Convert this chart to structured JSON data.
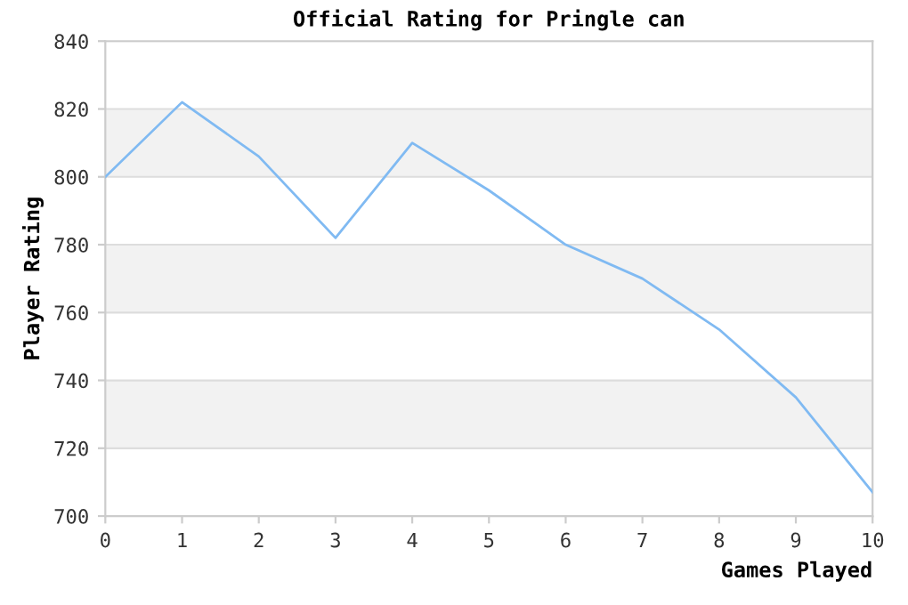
{
  "chart_data": {
    "type": "line",
    "title": "Official Rating for Pringle can",
    "xlabel": "Games Played",
    "ylabel": "Player Rating",
    "x": [
      0,
      1,
      2,
      3,
      4,
      5,
      6,
      7,
      8,
      9,
      10
    ],
    "series": [
      {
        "color": "#80baf2",
        "values": [
          800,
          822,
          806,
          782,
          810,
          796,
          780,
          770,
          755,
          735,
          707
        ]
      }
    ],
    "xlim": [
      0,
      10
    ],
    "xticks": [
      0,
      1,
      2,
      3,
      4,
      5,
      6,
      7,
      8,
      9,
      10
    ],
    "ylim": [
      700,
      840
    ],
    "yticks": [
      700,
      720,
      740,
      760,
      780,
      800,
      820,
      840
    ],
    "bands": [
      {
        "axis": "y",
        "from": 800,
        "to": 820,
        "color": "#f2f2f2"
      },
      {
        "axis": "y",
        "from": 760,
        "to": 780,
        "color": "#f2f2f2"
      },
      {
        "axis": "y",
        "from": 720,
        "to": 740,
        "color": "#f2f2f2"
      }
    ],
    "grid": "y",
    "marker": "none",
    "line_style": "solid"
  }
}
